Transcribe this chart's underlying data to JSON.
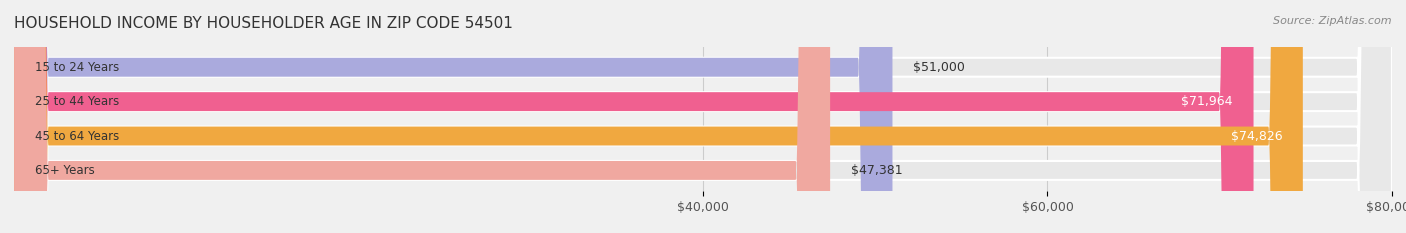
{
  "title": "HOUSEHOLD INCOME BY HOUSEHOLDER AGE IN ZIP CODE 54501",
  "source": "Source: ZipAtlas.com",
  "categories": [
    "15 to 24 Years",
    "25 to 44 Years",
    "45 to 64 Years",
    "65+ Years"
  ],
  "values": [
    51000,
    71964,
    74826,
    47381
  ],
  "bar_colors": [
    "#aaaadd",
    "#f06090",
    "#f0a840",
    "#f0a8a0"
  ],
  "bar_label_colors": [
    "#333333",
    "#ffffff",
    "#ffffff",
    "#333333"
  ],
  "label_inside": [
    false,
    true,
    true,
    false
  ],
  "x_min": 0,
  "x_max": 80000,
  "x_ticks": [
    40000,
    60000,
    80000
  ],
  "x_tick_labels": [
    "$40,000",
    "$60,000",
    "$80,000"
  ],
  "background_color": "#f0f0f0",
  "bar_bg_color": "#e8e8e8",
  "title_fontsize": 11,
  "source_fontsize": 8,
  "tick_fontsize": 9,
  "bar_label_fontsize": 9,
  "category_fontsize": 8.5
}
